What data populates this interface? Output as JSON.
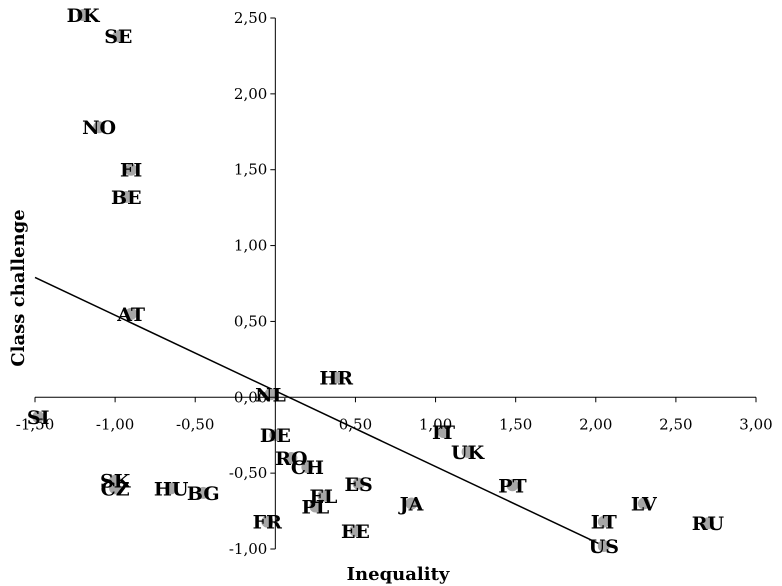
{
  "chart_data": {
    "type": "scatter",
    "title": "",
    "xlabel": "Inequality",
    "ylabel": "Class challenge",
    "xlim": [
      -1.5,
      3.0
    ],
    "ylim": [
      -1.0,
      2.5
    ],
    "x_ticks": [
      -1.5,
      -1.0,
      -0.5,
      0.0,
      0.5,
      1.0,
      1.5,
      2.0,
      2.5,
      3.0
    ],
    "x_tick_labels": [
      "-1,50",
      "-1,00",
      "-0,50",
      "0,00",
      "0,50",
      "1,00",
      "1,50",
      "2,00",
      "2,50",
      "3,00"
    ],
    "y_ticks": [
      -1.0,
      -0.5,
      0.5,
      1.0,
      1.5,
      2.0,
      2.5
    ],
    "y_tick_labels": [
      "-1,00",
      "-0,50",
      "0,50",
      "1,00",
      "1,50",
      "2,00",
      "2,50"
    ],
    "origin_label": "0,00",
    "grid": false,
    "marker_color": "#a6a6a6",
    "line_color": "#000000",
    "points": [
      {
        "label": "DK",
        "x": -1.2,
        "y": 2.52
      },
      {
        "label": "SE",
        "x": -0.98,
        "y": 2.38
      },
      {
        "label": "NO",
        "x": -1.1,
        "y": 1.78
      },
      {
        "label": "FI",
        "x": -0.9,
        "y": 1.5
      },
      {
        "label": "BE",
        "x": -0.93,
        "y": 1.32
      },
      {
        "label": "AT",
        "x": -0.9,
        "y": 0.55
      },
      {
        "label": "NL",
        "x": -0.03,
        "y": 0.02
      },
      {
        "label": "HR",
        "x": 0.38,
        "y": 0.13
      },
      {
        "label": "SI",
        "x": -1.48,
        "y": -0.13
      },
      {
        "label": "DE",
        "x": 0.0,
        "y": -0.25
      },
      {
        "label": "RO",
        "x": 0.1,
        "y": -0.4
      },
      {
        "label": "CH",
        "x": 0.2,
        "y": -0.46
      },
      {
        "label": "IT",
        "x": 1.05,
        "y": -0.23
      },
      {
        "label": "UK",
        "x": 1.2,
        "y": -0.36
      },
      {
        "label": "SK",
        "x": -1.0,
        "y": -0.55
      },
      {
        "label": "CZ",
        "x": -1.0,
        "y": -0.6
      },
      {
        "label": "HU",
        "x": -0.65,
        "y": -0.6
      },
      {
        "label": "BG",
        "x": -0.45,
        "y": -0.63
      },
      {
        "label": "ES",
        "x": 0.52,
        "y": -0.57
      },
      {
        "label": "EL",
        "x": 0.3,
        "y": -0.65
      },
      {
        "label": "PL",
        "x": 0.25,
        "y": -0.72
      },
      {
        "label": "PT",
        "x": 1.48,
        "y": -0.58
      },
      {
        "label": "JA",
        "x": 0.85,
        "y": -0.7
      },
      {
        "label": "FR",
        "x": -0.05,
        "y": -0.82
      },
      {
        "label": "EE",
        "x": 0.5,
        "y": -0.88
      },
      {
        "label": "LT",
        "x": 2.05,
        "y": -0.82
      },
      {
        "label": "LV",
        "x": 2.3,
        "y": -0.7
      },
      {
        "label": "RU",
        "x": 2.7,
        "y": -0.83
      },
      {
        "label": "US",
        "x": 2.05,
        "y": -0.98
      }
    ],
    "trendline": {
      "x": [
        -1.5,
        2.05
      ],
      "y": [
        0.79,
        -0.98
      ]
    }
  }
}
